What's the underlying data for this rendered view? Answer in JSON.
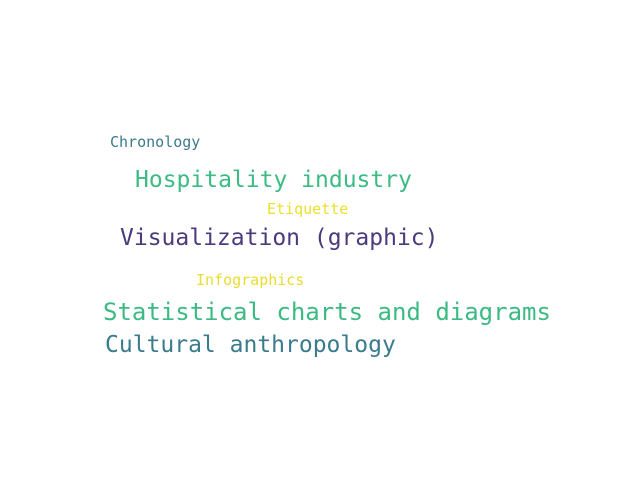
{
  "word_cloud": {
    "words": [
      {
        "id": "chronology",
        "text": "Chronology",
        "color": "#3b7a8c"
      },
      {
        "id": "hospitality",
        "text": "Hospitality industry",
        "color": "#3dbb84"
      },
      {
        "id": "etiquette",
        "text": "Etiquette",
        "color": "#ece02d"
      },
      {
        "id": "visualization",
        "text": "Visualization (graphic)",
        "color": "#4b3b7d"
      },
      {
        "id": "infographics",
        "text": "Infographics",
        "color": "#e8dc2e"
      },
      {
        "id": "statistical",
        "text": "Statistical charts and diagrams",
        "color": "#3cba84"
      },
      {
        "id": "cultural",
        "text": "Cultural anthropology",
        "color": "#3a7b8c"
      }
    ]
  }
}
